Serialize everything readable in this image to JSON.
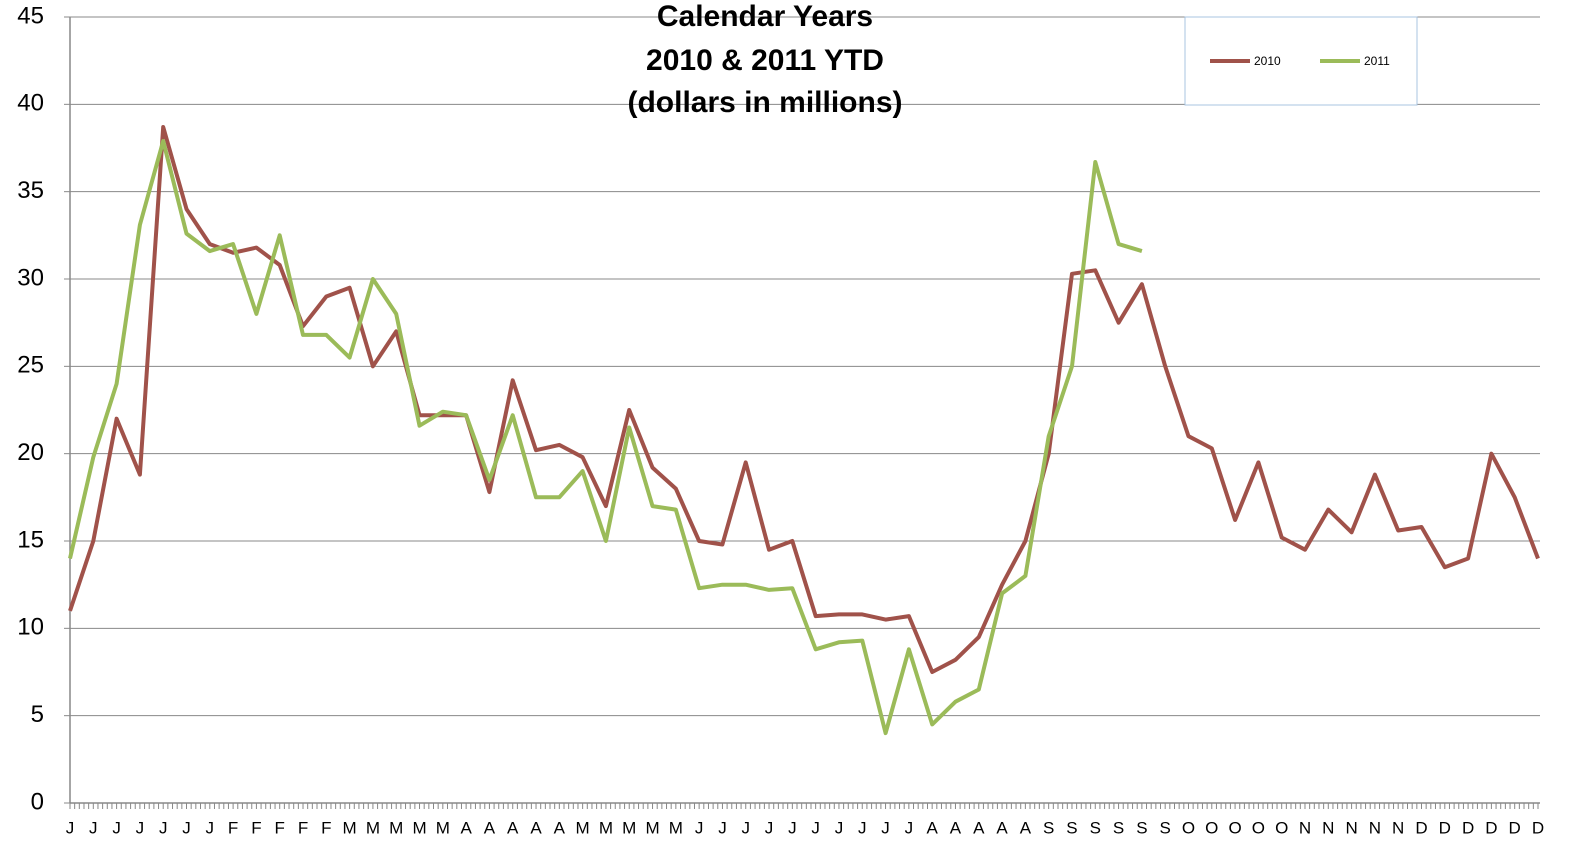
{
  "chart_data": {
    "type": "line",
    "title": [
      "Calendar Years",
      "2010 & 2011 YTD",
      "(dollars in millions)"
    ],
    "categories": [
      "J",
      "J",
      "J",
      "J",
      "J",
      "J",
      "J",
      "F",
      "F",
      "F",
      "F",
      "F",
      "M",
      "M",
      "M",
      "M",
      "M",
      "A",
      "A",
      "A",
      "A",
      "A",
      "M",
      "M",
      "M",
      "M",
      "M",
      "J",
      "J",
      "J",
      "J",
      "J",
      "J",
      "J",
      "J",
      "J",
      "J",
      "A",
      "A",
      "A",
      "A",
      "A",
      "S",
      "S",
      "S",
      "S",
      "S",
      "S",
      "O",
      "O",
      "O",
      "O",
      "O",
      "N",
      "N",
      "N",
      "N",
      "N",
      "D",
      "D",
      "D",
      "D",
      "D",
      "D"
    ],
    "series": [
      {
        "name": "2010",
        "color": "#a0524a",
        "values": [
          11,
          15,
          22,
          18.8,
          38.7,
          34,
          32,
          31.5,
          31.8,
          30.8,
          27.3,
          29,
          29.5,
          25,
          27,
          22.2,
          22.2,
          22.2,
          17.8,
          24.2,
          20.2,
          20.5,
          19.8,
          17,
          22.5,
          19.2,
          18,
          15,
          14.8,
          19.5,
          14.5,
          15,
          10.7,
          10.8,
          10.8,
          10.5,
          10.7,
          7.5,
          8.2,
          9.5,
          12.5,
          15,
          20,
          30.3,
          30.5,
          27.5,
          29.7,
          25,
          21,
          20.3,
          16.2,
          19.5,
          15.2,
          14.5,
          16.8,
          15.5,
          18.8,
          15.6,
          15.8,
          13.5,
          14,
          20,
          17.5,
          14
        ]
      },
      {
        "name": "2011",
        "color": "#9bbb59",
        "values": [
          14,
          19.8,
          24,
          33.1,
          37.9,
          32.6,
          31.6,
          32,
          28,
          32.5,
          26.8,
          26.8,
          25.5,
          30,
          28,
          21.6,
          22.4,
          22.2,
          18.5,
          22.2,
          17.5,
          17.5,
          19,
          15,
          21.5,
          17,
          16.8,
          12.3,
          12.5,
          12.5,
          12.2,
          12.3,
          8.8,
          9.2,
          9.3,
          4,
          8.8,
          4.5,
          5.8,
          6.5,
          12,
          13,
          21,
          25,
          36.7,
          32,
          31.6,
          null,
          null,
          null,
          null,
          null,
          null,
          null,
          null,
          null,
          null,
          null,
          null,
          null,
          null,
          null,
          null,
          null
        ]
      }
    ],
    "ylim": [
      0,
      45
    ],
    "yticks": [
      0,
      5,
      10,
      15,
      20,
      25,
      30,
      35,
      40,
      45
    ],
    "grid": true,
    "legend": "top-right"
  }
}
